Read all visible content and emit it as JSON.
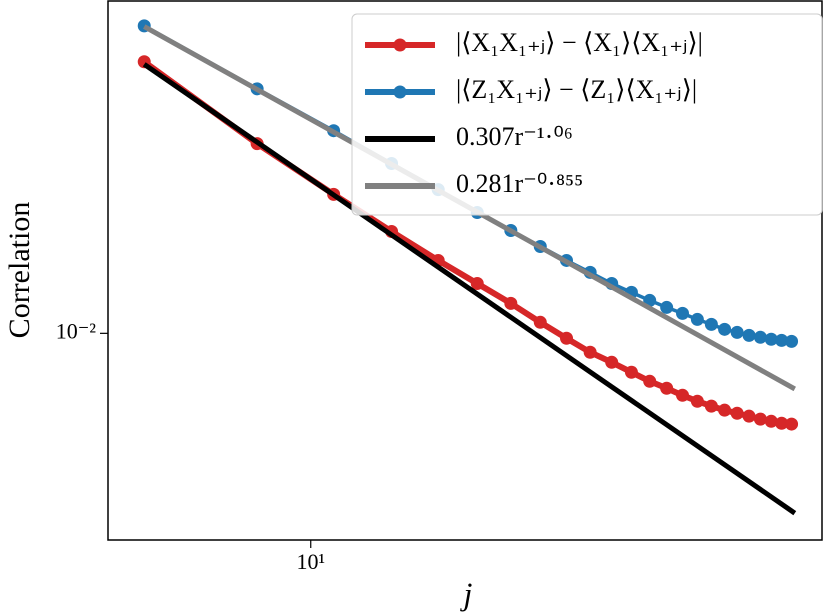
{
  "chart_data": {
    "type": "line",
    "log_x": true,
    "log_y": true,
    "x_label": "j",
    "y_label": "Correlation",
    "x": [
      5,
      8,
      11,
      14,
      17,
      20,
      23,
      26,
      29,
      32,
      35,
      38,
      41,
      44,
      47,
      50,
      53,
      56,
      59,
      62,
      65,
      68,
      71,
      74
    ],
    "xlim": [
      4.3,
      84.0
    ],
    "ylim": [
      0.00267,
      0.0836
    ],
    "xticks": [
      {
        "value": 10,
        "label": "10¹"
      }
    ],
    "yticks": [
      {
        "value": 0.01,
        "label": "10⁻²"
      }
    ],
    "legend": "upper right",
    "series": [
      {
        "name": "|⟨X₁X₁₊ⱼ⟩ − ⟨X₁⟩⟨X₁₊ⱼ⟩|",
        "color": "#d62728",
        "markers": true,
        "values": [
          0.0567,
          0.0336,
          0.0243,
          0.01917,
          0.01593,
          0.01375,
          0.01211,
          0.01073,
          0.00969,
          0.00886,
          0.00831,
          0.0078,
          0.00736,
          0.00704,
          0.00673,
          0.00648,
          0.00628,
          0.00612,
          0.006,
          0.00589,
          0.00578,
          0.0057,
          0.00563,
          0.0056
        ]
      },
      {
        "name": "|⟨Z₁X₁₊ⱼ⟩ − ⟨Z₁⟩⟨X₁₊ⱼ⟩|",
        "color": "#1f77b4",
        "markers": true,
        "values": [
          0.0713,
          0.0477,
          0.0365,
          0.0296,
          0.02505,
          0.02164,
          0.01929,
          0.01742,
          0.01593,
          0.01476,
          0.01375,
          0.01299,
          0.01234,
          0.0118,
          0.01136,
          0.01093,
          0.01059,
          0.01026,
          0.01006,
          0.00987,
          0.00975,
          0.00963,
          0.00956,
          0.0095
        ]
      },
      {
        "name": "0.307r⁻¹·⁰⁶",
        "color": "#000000",
        "markers": false,
        "x": [
          5,
          75
        ],
        "values": [
          0.0558,
          0.00317
        ]
      },
      {
        "name": "0.281r⁻⁰·⁸⁵⁵",
        "color": "#808080",
        "markers": false,
        "x": [
          5,
          75
        ],
        "values": [
          0.071,
          0.00701
        ]
      }
    ]
  }
}
